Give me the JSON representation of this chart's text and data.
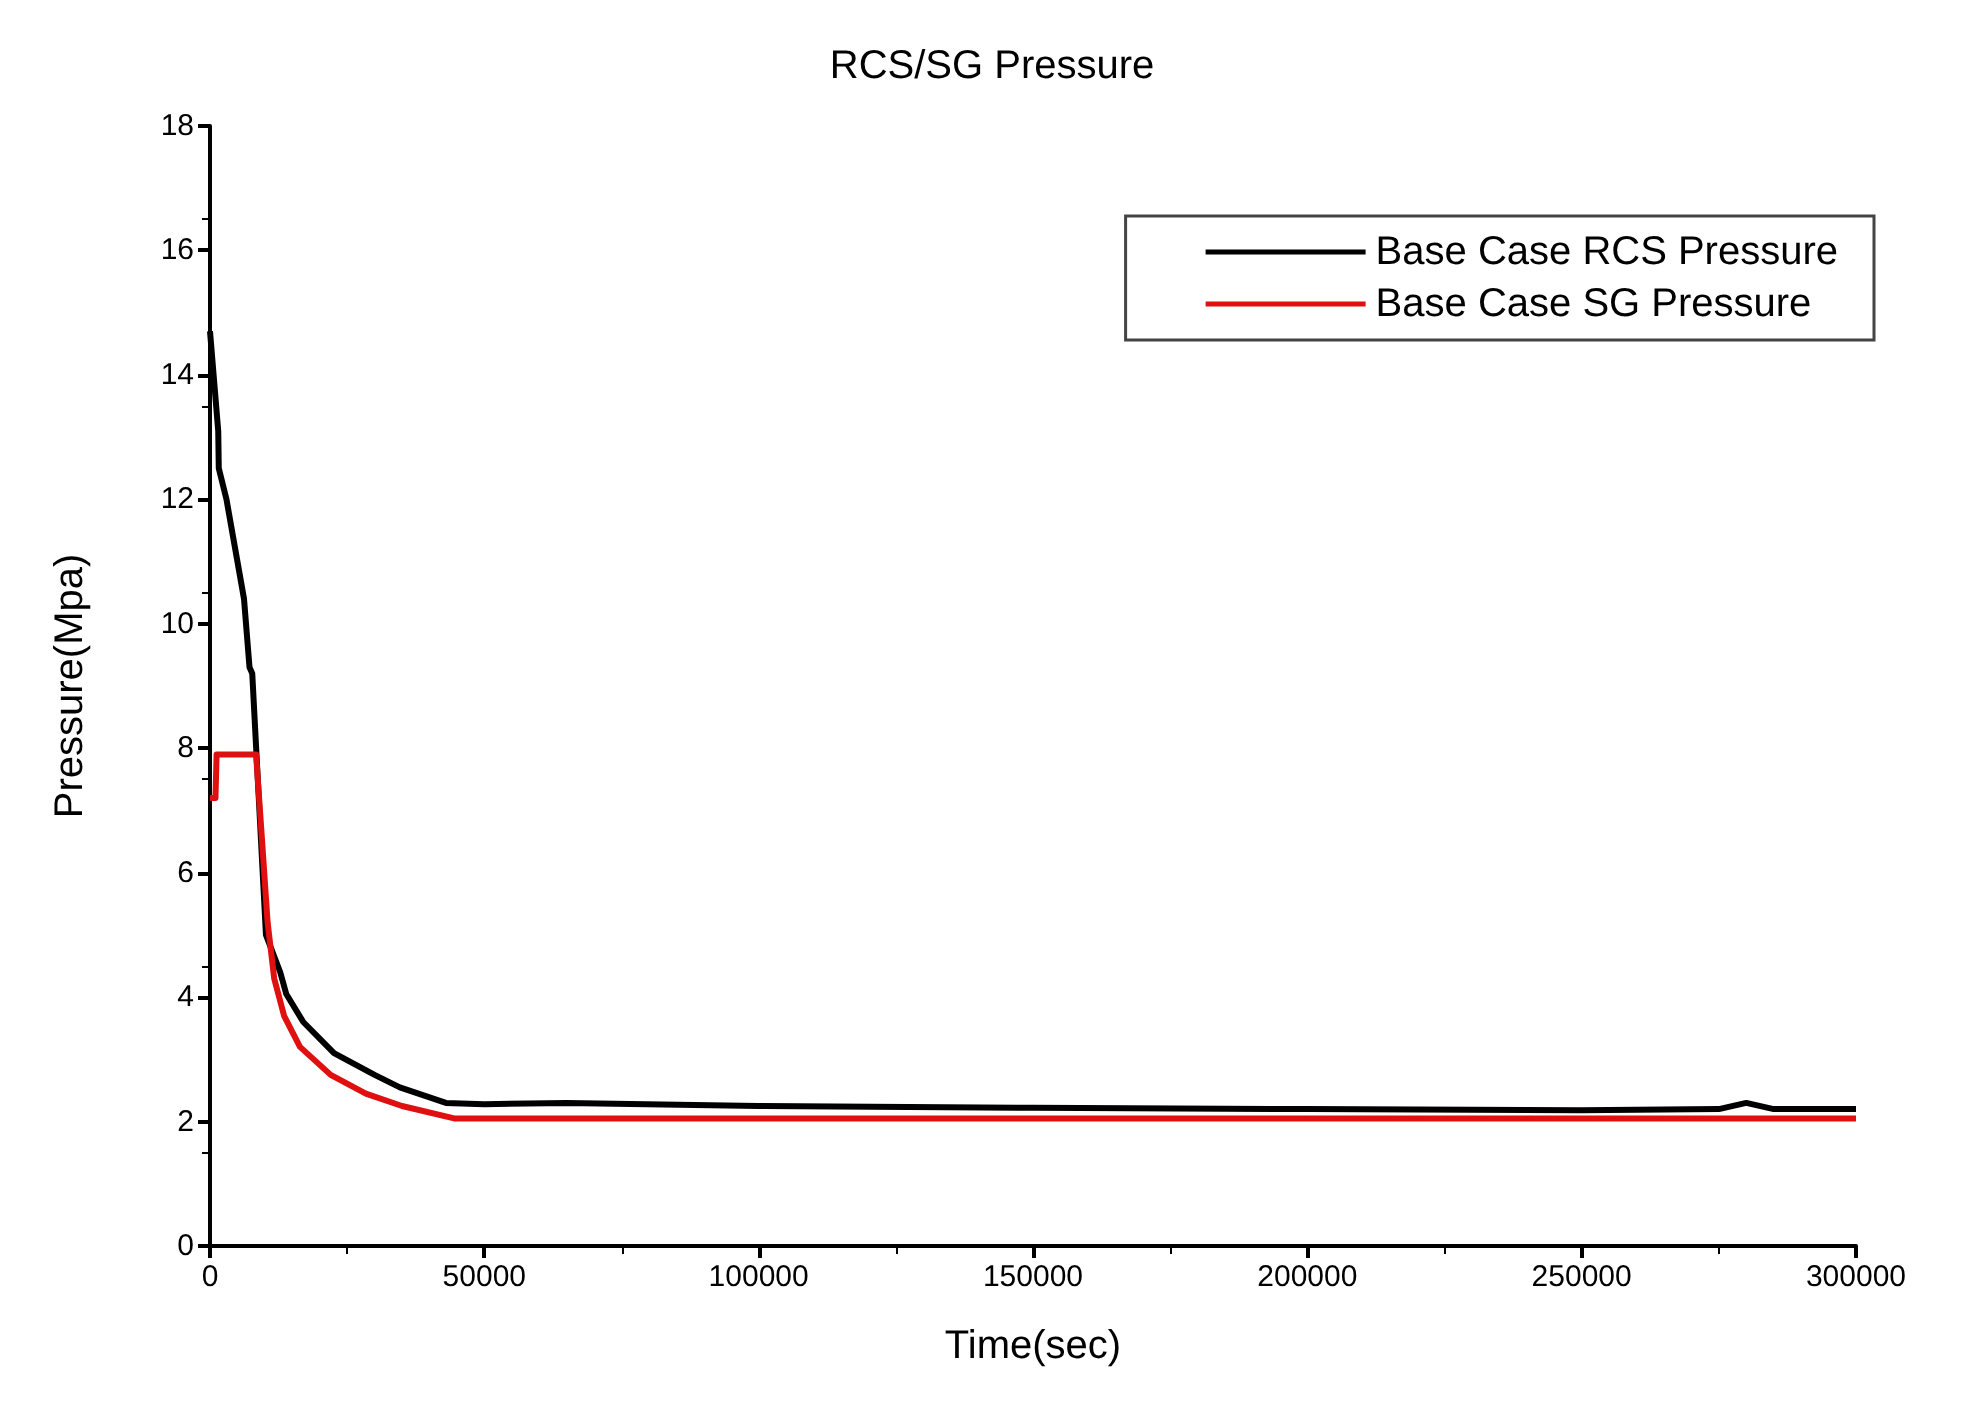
{
  "chart_data": {
    "type": "line",
    "title": "RCS/SG Pressure",
    "xlabel": "Time(sec)",
    "ylabel": "Pressure(Mpa)",
    "xlim": [
      0,
      300000
    ],
    "xticks": [
      0,
      50000,
      100000,
      150000,
      200000,
      250000,
      300000
    ],
    "ylim": [
      0,
      18
    ],
    "yticks": [
      0,
      2,
      4,
      6,
      8,
      10,
      12,
      14,
      16,
      18
    ],
    "grid": false,
    "legend": "top right",
    "marker": "none",
    "line_style": "solid",
    "series": [
      {
        "name": "Base Case RCS Pressure",
        "color": "#000000",
        "x": [
          0,
          1500,
          1600,
          3000,
          6200,
          7200,
          7700,
          10200,
          12800,
          13900,
          17000,
          22600,
          30000,
          34600,
          43000,
          50000,
          65000,
          100000,
          150000,
          200000,
          250000,
          275000,
          280000,
          285000,
          300000
        ],
        "values": [
          14.7,
          13.1,
          12.5,
          12.0,
          10.4,
          9.3,
          9.2,
          5.0,
          4.4,
          4.05,
          3.6,
          3.1,
          2.75,
          2.55,
          2.3,
          2.28,
          2.3,
          2.25,
          2.22,
          2.2,
          2.18,
          2.2,
          2.3,
          2.2,
          2.2
        ]
      },
      {
        "name": "Base Case SG Pressure",
        "color": "#e01010",
        "x": [
          0,
          1000,
          1200,
          8400,
          9500,
          10500,
          11700,
          13500,
          16400,
          22000,
          28400,
          35000,
          44500,
          300000
        ],
        "values": [
          7.2,
          7.2,
          7.9,
          7.9,
          6.5,
          5.2,
          4.3,
          3.7,
          3.2,
          2.75,
          2.45,
          2.25,
          2.05,
          2.05
        ]
      }
    ]
  }
}
